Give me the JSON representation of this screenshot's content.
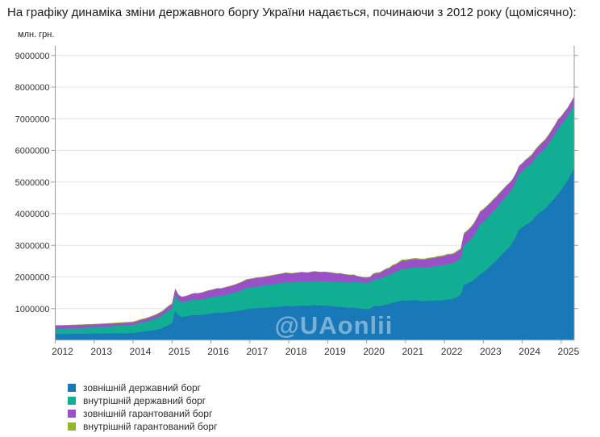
{
  "page": {
    "title": "На графіку динаміка зміни державного боргу України надається, починаючи з 2012 року (щомісячно):"
  },
  "chart_data": {
    "type": "area",
    "stacked": true,
    "title": "",
    "ylabel": "млн. грн.",
    "xlabel": "",
    "watermark": "@UAonlii",
    "grid": true,
    "legend_position": "bottom-left",
    "x_start": "2012-01",
    "x_frequency": "monthly",
    "x_tick_labels": [
      "2012",
      "2013",
      "2014",
      "2015",
      "2016",
      "2017",
      "2018",
      "2019",
      "2020",
      "2021",
      "2022",
      "2023",
      "2024",
      "2025"
    ],
    "y_ticks": [
      1000000,
      2000000,
      3000000,
      4000000,
      5000000,
      6000000,
      7000000,
      8000000,
      9000000
    ],
    "ylim": [
      0,
      9350000
    ],
    "series": [
      {
        "name": "зовнішній державний борг",
        "color": "#1878B8",
        "values": [
          195000,
          196000,
          197000,
          198000,
          199500,
          201000,
          202000,
          203500,
          205000,
          206000,
          207500,
          208900,
          209500,
          210500,
          211500,
          213000,
          214000,
          215500,
          217000,
          218000,
          219500,
          220500,
          222000,
          223300,
          226000,
          242000,
          262000,
          272000,
          282000,
          295000,
          308000,
          325000,
          352000,
          385000,
          435000,
          485800,
          530000,
          920000,
          780000,
          730000,
          745000,
          760000,
          790000,
          800000,
          790000,
          795000,
          810000,
          826300,
          840000,
          855000,
          870000,
          860000,
          870000,
          885000,
          895000,
          905000,
          920000,
          935000,
          958000,
          980200,
          990000,
          998000,
          1010000,
          1015000,
          1020000,
          1030000,
          1035000,
          1045000,
          1050000,
          1058000,
          1068000,
          1080300,
          1075000,
          1070000,
          1080000,
          1085000,
          1095000,
          1090000,
          1085000,
          1100000,
          1110000,
          1100000,
          1095000,
          1099200,
          1090000,
          1080000,
          1065000,
          1055000,
          1060000,
          1040000,
          1030000,
          1020000,
          1035000,
          1010000,
          1000000,
          991300,
          985000,
          990000,
          1060000,
          1080000,
          1075000,
          1100000,
          1130000,
          1140000,
          1190000,
          1200000,
          1230000,
          1258600,
          1250000,
          1255000,
          1260000,
          1265000,
          1250000,
          1240000,
          1235000,
          1250000,
          1245000,
          1250000,
          1260000,
          1254900,
          1265000,
          1290000,
          1300000,
          1320000,
          1380000,
          1430000,
          1750000,
          1790000,
          1840000,
          1900000,
          1990000,
          2086000,
          2150000,
          2230000,
          2320000,
          2430000,
          2520000,
          2630000,
          2730000,
          2840000,
          2950000,
          3080000,
          3270000,
          3497000,
          3560000,
          3640000,
          3700000,
          3780000,
          3900000,
          4000000,
          4080000,
          4150000,
          4260000,
          4380000,
          4490000,
          4618000,
          4750000,
          4900000,
          5050000,
          5250000,
          5450000
        ]
      },
      {
        "name": "внутрішній державний борг",
        "color": "#12AE94",
        "values": [
          163000,
          165000,
          167000,
          169000,
          171000,
          173000,
          175500,
          178000,
          181000,
          184000,
          187000,
          190300,
          194000,
          199000,
          204000,
          210000,
          216000,
          222000,
          228000,
          234000,
          240000,
          246000,
          251500,
          257000,
          260000,
          268000,
          278000,
          292000,
          305000,
          325000,
          345000,
          365000,
          385000,
          405000,
          432000,
          461000,
          470000,
          500000,
          480000,
          470000,
          472000,
          478000,
          482000,
          485000,
          488000,
          492000,
          500000,
          508000,
          515000,
          522000,
          530000,
          538000,
          548000,
          560000,
          572000,
          588000,
          605000,
          625000,
          648000,
          670600,
          676000,
          682000,
          690000,
          695000,
          700000,
          708000,
          714000,
          722000,
          730000,
          738000,
          745000,
          753400,
          750000,
          748000,
          752000,
          755000,
          758000,
          756000,
          754000,
          758000,
          762000,
          760000,
          760000,
          761100,
          765000,
          770000,
          775000,
          780000,
          786000,
          792000,
          798000,
          805000,
          812000,
          818000,
          824000,
          829500,
          832000,
          836000,
          845000,
          852000,
          860000,
          880000,
          900000,
          915000,
          935000,
          950000,
          975000,
          1001000,
          1010000,
          1020000,
          1030000,
          1035000,
          1040000,
          1045000,
          1050000,
          1060000,
          1070000,
          1080000,
          1095000,
          1107000,
          1118000,
          1127000,
          1121000,
          1130000,
          1135000,
          1140000,
          1250000,
          1290000,
          1335000,
          1395000,
          1480000,
          1577000,
          1590000,
          1605000,
          1620000,
          1640000,
          1655000,
          1670000,
          1690000,
          1700000,
          1705000,
          1715000,
          1730000,
          1755000,
          1775000,
          1800000,
          1815000,
          1830000,
          1850000,
          1870000,
          1890000,
          1910000,
          1935000,
          1970000,
          2020000,
          2072000,
          2060000,
          2050000,
          2040000,
          2020000,
          2010000
        ]
      },
      {
        "name": "зовнішній гарантований борг",
        "color": "#9A50C7",
        "values": [
          103000,
          102500,
          102000,
          101500,
          101000,
          100500,
          100000,
          99500,
          99000,
          98500,
          98000,
          97700,
          96000,
          94000,
          92000,
          90000,
          88000,
          86000,
          84000,
          82000,
          80000,
          78600,
          77200,
          76000,
          77000,
          82000,
          88000,
          90000,
          92000,
          95000,
          98000,
          102000,
          108000,
          112000,
          119000,
          126300,
          140000,
          195000,
          170000,
          162000,
          168000,
          175000,
          185000,
          195000,
          200000,
          208000,
          216000,
          226300,
          228000,
          231000,
          234000,
          232000,
          235000,
          238000,
          241000,
          244000,
          248000,
          251000,
          255000,
          259800,
          261000,
          263000,
          266000,
          268000,
          270000,
          273000,
          276000,
          280000,
          284000,
          288000,
          291000,
          294700,
          293000,
          291000,
          293000,
          294000,
          296000,
          295000,
          294000,
          297000,
          299000,
          297000,
          296000,
          295900,
          290000,
          284000,
          276000,
          268000,
          262000,
          250000,
          240000,
          228000,
          215000,
          195000,
          175000,
          155900,
          157000,
          160000,
          175000,
          185000,
          190000,
          200000,
          210000,
          218000,
          230000,
          238000,
          248000,
          259400,
          258000,
          260000,
          262000,
          264000,
          262000,
          260000,
          262000,
          266000,
          268000,
          270000,
          273000,
          275800,
          278000,
          280000,
          281000,
          285000,
          290000,
          295000,
          360000,
          365000,
          370000,
          375000,
          382000,
          390000,
          385000,
          382000,
          378000,
          360000,
          350000,
          340000,
          330000,
          320000,
          300000,
          280000,
          260000,
          242000,
          245000,
          247000,
          248000,
          250000,
          252000,
          255000,
          258000,
          260000,
          263000,
          266000,
          269000,
          272000,
          255000,
          250000,
          245000,
          240000,
          235000
        ]
      },
      {
        "name": "внутрішній гарантований борг",
        "color": "#8FB729",
        "values": [
          12300,
          12600,
          12900,
          13200,
          13500,
          13800,
          14200,
          14600,
          15000,
          15400,
          15800,
          16200,
          17000,
          17800,
          18600,
          19500,
          20400,
          21300,
          22200,
          23100,
          24000,
          25000,
          26000,
          27100,
          27200,
          27300,
          27300,
          27400,
          27400,
          27500,
          27500,
          27600,
          27700,
          27700,
          27800,
          27900,
          25000,
          20000,
          17000,
          16000,
          15000,
          14500,
          14000,
          13500,
          13200,
          13000,
          12600,
          12300,
          12500,
          12800,
          13200,
          13600,
          14100,
          14600,
          15200,
          15900,
          16600,
          17400,
          18200,
          19100,
          18800,
          18400,
          18000,
          17500,
          17000,
          16500,
          16000,
          15500,
          15000,
          14400,
          13800,
          13300,
          13200,
          13100,
          13000,
          12900,
          12800,
          12700,
          12600,
          12500,
          12400,
          12300,
          12200,
          12100,
          12300,
          12600,
          13000,
          13500,
          14100,
          14800,
          15600,
          16500,
          17500,
          18700,
          20000,
          21500,
          22000,
          22500,
          23500,
          24500,
          25500,
          26500,
          27500,
          28500,
          29500,
          30500,
          31500,
          32900,
          33000,
          33200,
          33400,
          33500,
          33600,
          33700,
          33800,
          33900,
          34000,
          34100,
          34100,
          34200,
          34000,
          34000,
          33000,
          33000,
          32000,
          31000,
          30000,
          29000,
          29000,
          28000,
          28000,
          27000,
          27000,
          27000,
          26000,
          26000,
          26000,
          26000,
          25000,
          25000,
          25000,
          25000,
          25000,
          25000,
          25000,
          25000,
          25000,
          25000,
          25000,
          26000,
          26000,
          26000,
          26000,
          26000,
          26000,
          26000,
          25000,
          25000,
          25000,
          25000,
          25000
        ]
      }
    ]
  }
}
